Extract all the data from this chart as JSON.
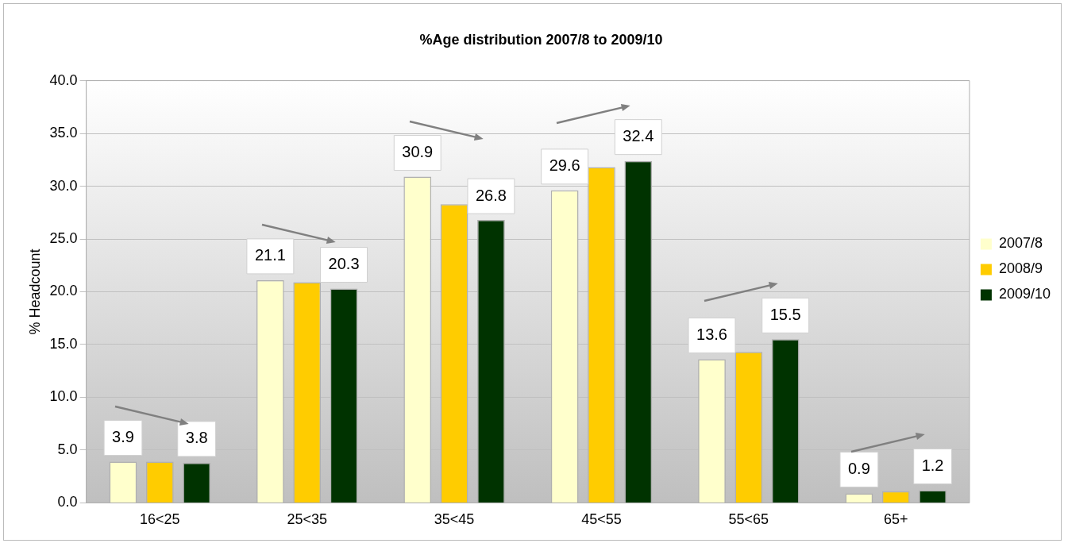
{
  "chart_data": {
    "type": "bar",
    "title": "%Age distribution 2007/8 to 2009/10",
    "ylabel": "% Headcount",
    "categories": [
      "16<25",
      "25<35",
      "35<45",
      "45<55",
      "55<65",
      "65+"
    ],
    "series": [
      {
        "name": "2007/8",
        "color": "#ffffcc",
        "values": [
          3.9,
          21.1,
          30.9,
          29.6,
          13.6,
          0.9
        ],
        "value_labels": [
          "3.9",
          "21.1",
          "30.9",
          "29.6",
          "13.6",
          "0.9"
        ]
      },
      {
        "name": "2008/9",
        "color": "#ffcc00",
        "values": [
          3.9,
          20.9,
          28.3,
          31.8,
          14.3,
          1.1
        ]
      },
      {
        "name": "2009/10",
        "color": "#003300",
        "values": [
          3.8,
          20.3,
          26.8,
          32.4,
          15.5,
          1.2
        ],
        "value_labels": [
          "3.8",
          "20.3",
          "26.8",
          "32.4",
          "15.5",
          "1.2"
        ]
      }
    ],
    "ylim": [
      0,
      40
    ],
    "yticks": [
      {
        "value": 0,
        "label": "0.0"
      },
      {
        "value": 5,
        "label": "5.0"
      },
      {
        "value": 10,
        "label": "10.0"
      },
      {
        "value": 15,
        "label": "15.0"
      },
      {
        "value": 20,
        "label": "20.0"
      },
      {
        "value": 25,
        "label": "25.0"
      },
      {
        "value": 30,
        "label": "30.0"
      },
      {
        "value": 35,
        "label": "35.0"
      },
      {
        "value": 40,
        "label": "40.0"
      }
    ],
    "grid": "y",
    "legend": "right"
  }
}
